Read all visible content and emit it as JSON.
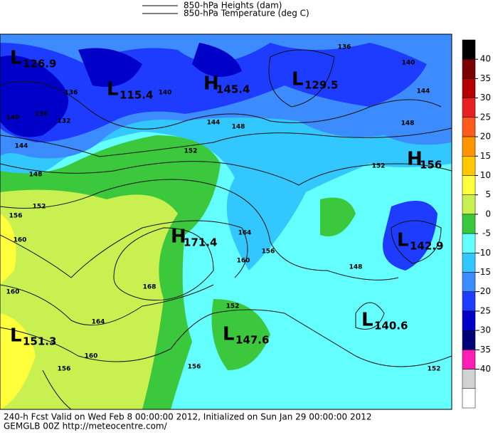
{
  "legend": [
    "850-hPa Heights (dam)",
    "850-hPa Temperature (deg C)"
  ],
  "centers": [
    {
      "kind": "L",
      "value": 126.9
    },
    {
      "kind": "L",
      "value": 115.4
    },
    {
      "kind": "H",
      "value": 145.4
    },
    {
      "kind": "L",
      "value": 129.5
    },
    {
      "kind": "H",
      "value": 156
    },
    {
      "kind": "H",
      "value": 171.4
    },
    {
      "kind": "L",
      "value": 142.9
    },
    {
      "kind": "L",
      "value": 140.6
    },
    {
      "kind": "L",
      "value": 147.6
    },
    {
      "kind": "L",
      "value": 151.3
    }
  ],
  "contour_labels": [
    136,
    136,
    140,
    132,
    144,
    148,
    152,
    156,
    160,
    160,
    164,
    160,
    156,
    152,
    148,
    144,
    140,
    136,
    140,
    144,
    148,
    152,
    156,
    160,
    164,
    168,
    152,
    156,
    148,
    152
  ],
  "colorbar": {
    "ticks": [
      40,
      35,
      30,
      25,
      20,
      15,
      10,
      5,
      0,
      -5,
      -10,
      -15,
      -20,
      -25,
      -30,
      -35,
      -40
    ],
    "colors": [
      "#000000",
      "#7a0000",
      "#b40000",
      "#e82020",
      "#ff5a1e",
      "#ff9600",
      "#ffc800",
      "#ffff3c",
      "#c8f050",
      "#3cc83c",
      "#64ffff",
      "#32c8ff",
      "#3c8cff",
      "#1e3cff",
      "#0000c8",
      "#000078",
      "#ff1eb4",
      "#d2d2d2",
      "#ffffff"
    ]
  },
  "footer": [
    "240-h Fcst Valid on Wed Feb  8 00:00:00 2012, Initialized on Sun Jan 29 00:00:00 2012",
    "GEMGLB 00Z http://meteocentre.com/"
  ]
}
